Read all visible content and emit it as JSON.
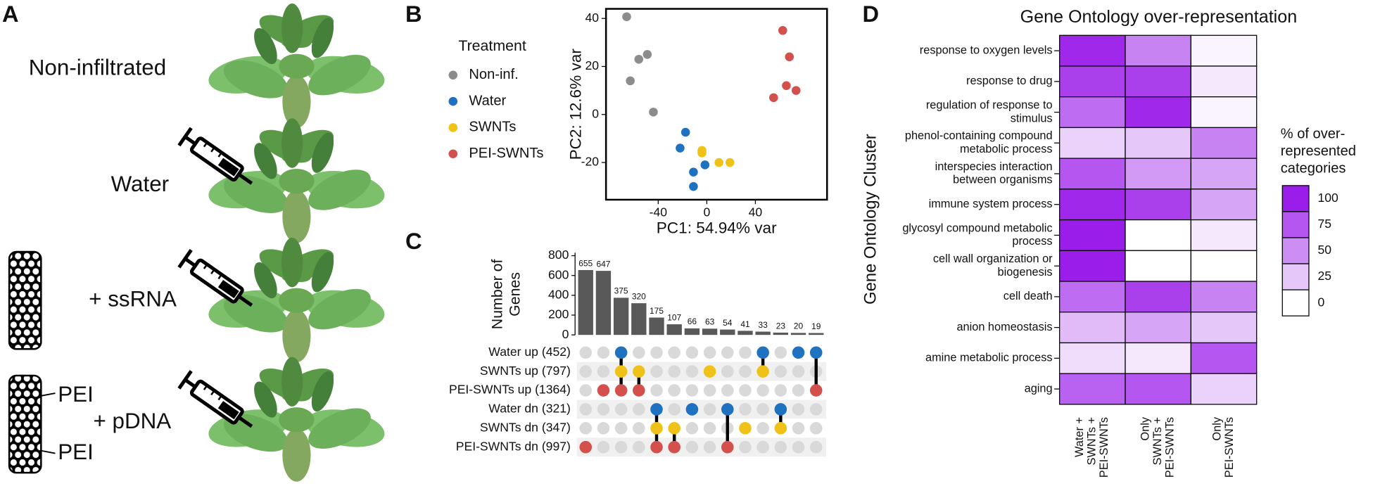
{
  "panel_labels": [
    "A",
    "B",
    "C",
    "D"
  ],
  "panel_a": {
    "conditions": [
      "Non-infiltrated",
      "Water",
      "+ ssRNA",
      "+ pDNA"
    ],
    "polymer_labels": [
      "PEI",
      "PEI"
    ]
  },
  "chart_data": [
    {
      "type": "scatter",
      "xlabel": "PC1: 54.94% var",
      "ylabel": "PC2: 12.6% var",
      "legend_title": "Treatment",
      "xlim": [
        -83,
        99
      ],
      "ylim": [
        -35.5,
        44
      ],
      "xticks": [
        -40,
        0,
        40
      ],
      "yticks": [
        -20,
        0,
        20,
        40
      ],
      "series": [
        {
          "name": "Non-inf.",
          "color": "#8c8c8c",
          "x": [
            -66,
            -56,
            -49,
            -63,
            -44
          ],
          "values": [
            40.7,
            23,
            25,
            14,
            1
          ]
        },
        {
          "name": "Water",
          "color": "#1f72bf",
          "x": [
            -17.5,
            -22,
            -1.5,
            -11,
            -11
          ],
          "values": [
            -7.4,
            -14,
            -21,
            -24,
            -30
          ]
        },
        {
          "name": "SWNTs",
          "color": "#efc21a",
          "x": [
            -4,
            -4,
            10,
            19
          ],
          "values": [
            -15,
            -16,
            -20,
            -20
          ]
        },
        {
          "name": "PEI-SWNTs",
          "color": "#d4504c",
          "x": [
            62.5,
            68,
            65.5,
            73.5,
            55
          ],
          "values": [
            35,
            24,
            12,
            10,
            7
          ]
        }
      ]
    },
    {
      "type": "upset",
      "ylabel": [
        "Number of",
        "Genes"
      ],
      "bar_color": "#595959",
      "values": [
        655,
        647,
        375,
        320,
        175,
        107,
        66,
        63,
        54,
        41,
        33,
        23,
        20,
        19
      ],
      "ylim": [
        0,
        830
      ],
      "yticks": [
        0,
        200,
        400,
        600,
        800
      ],
      "sets": [
        {
          "name": "Water up (452)",
          "color": "#1f72bf"
        },
        {
          "name": "SWNTs up (797)",
          "color": "#efc21a"
        },
        {
          "name": "PEI-SWNTs up (1364)",
          "color": "#d4504c"
        },
        {
          "name": "Water dn (321)",
          "color": "#1f72bf"
        },
        {
          "name": "SWNTs dn (347)",
          "color": "#efc21a"
        },
        {
          "name": "PEI-SWNTs dn (997)",
          "color": "#d4504c"
        }
      ],
      "intersections": [
        [
          5
        ],
        [
          2
        ],
        [
          0,
          1,
          2
        ],
        [
          1,
          2
        ],
        [
          3,
          4,
          5
        ],
        [
          4,
          5
        ],
        [
          3
        ],
        [
          1
        ],
        [
          3,
          5
        ],
        [
          4
        ],
        [
          0,
          1
        ],
        [
          3,
          4
        ],
        [
          0
        ],
        [
          0,
          2
        ]
      ]
    },
    {
      "type": "heatmap",
      "title": "Gene Ontology over-representation",
      "ylabel": "Gene Ontology Cluster",
      "rows": [
        [
          "response to oxygen levels"
        ],
        [
          "response to drug"
        ],
        [
          "regulation of response to",
          "stimulus"
        ],
        [
          "phenol-containing compound",
          "metabolic process"
        ],
        [
          "interspecies interaction",
          "between organisms"
        ],
        [
          "immune system process"
        ],
        [
          "glycosyl compound metabolic",
          "process"
        ],
        [
          "cell wall organization or",
          "biogenesis"
        ],
        [
          "cell death"
        ],
        [
          "anion homeostasis"
        ],
        [
          "amine metabolic process"
        ],
        [
          "aging"
        ]
      ],
      "columns": [
        [
          "Water +",
          "SWNTs +",
          "PEI-SWNTs"
        ],
        [
          "Only",
          "SWNTs +",
          "PEI-SWNTs"
        ],
        [
          "Only",
          "PEI-SWNTs"
        ]
      ],
      "values": [
        [
          95,
          55,
          5
        ],
        [
          85,
          85,
          10
        ],
        [
          65,
          95,
          5
        ],
        [
          20,
          25,
          55
        ],
        [
          75,
          45,
          40
        ],
        [
          95,
          85,
          40
        ],
        [
          100,
          0,
          10
        ],
        [
          100,
          0,
          0
        ],
        [
          65,
          85,
          55
        ],
        [
          30,
          40,
          25
        ],
        [
          15,
          10,
          75
        ],
        [
          70,
          75,
          20
        ]
      ],
      "clim": [
        0,
        100
      ],
      "colors": [
        "#ffffff",
        "#9b1de9"
      ],
      "legend_title": [
        "% of over-",
        "represented",
        "categories"
      ],
      "legend_ticks": [
        100,
        75,
        50,
        25,
        0
      ]
    }
  ]
}
